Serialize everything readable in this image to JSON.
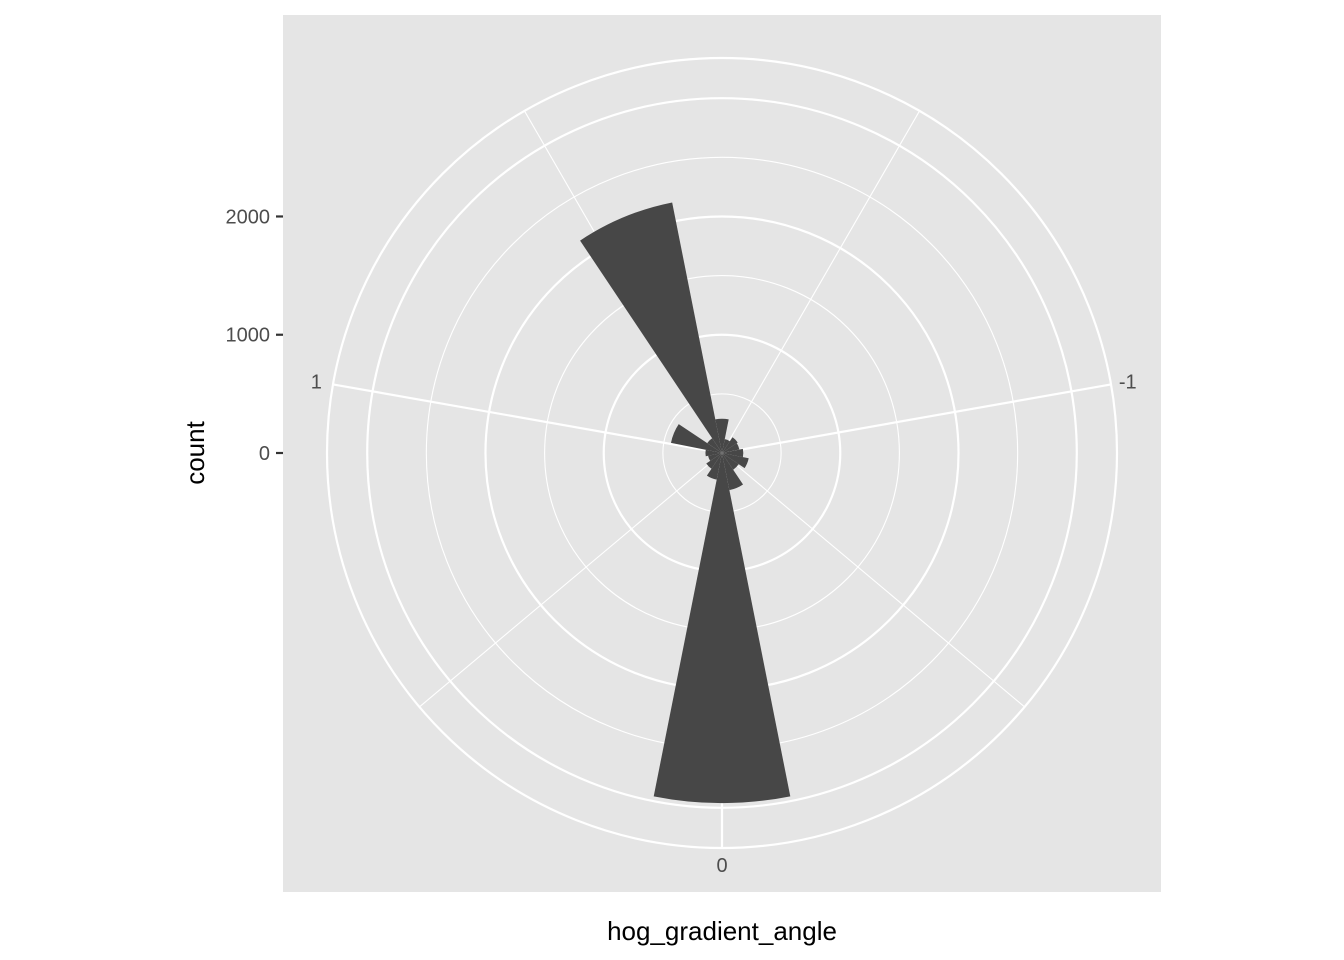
{
  "chart_data": {
    "type": "bar",
    "coord": "polar",
    "title": "",
    "xlabel": "hog_gradient_angle",
    "ylabel": "count",
    "theta_ticks": [
      {
        "value": -1,
        "label": "-1"
      },
      {
        "value": 0,
        "label": "0"
      },
      {
        "value": 1,
        "label": "1"
      }
    ],
    "y_ticks": [
      {
        "value": 0,
        "label": "0"
      },
      {
        "value": 1000,
        "label": "1000"
      },
      {
        "value": 2000,
        "label": "2000"
      }
    ],
    "x_range": [
      -1.8,
      1.8
    ],
    "y_max": 3340,
    "bin_width": 0.225,
    "bins": [
      {
        "x": -1.575,
        "count": 120
      },
      {
        "x": -1.35,
        "count": 160
      },
      {
        "x": -1.125,
        "count": 150
      },
      {
        "x": -0.9,
        "count": 180
      },
      {
        "x": -0.675,
        "count": 230
      },
      {
        "x": -0.45,
        "count": 170
      },
      {
        "x": -0.225,
        "count": 320
      },
      {
        "x": 0.0,
        "count": 2960
      },
      {
        "x": 0.225,
        "count": 230
      },
      {
        "x": 0.45,
        "count": 160
      },
      {
        "x": 0.675,
        "count": 120
      },
      {
        "x": 0.9,
        "count": 140
      },
      {
        "x": 1.125,
        "count": 440
      },
      {
        "x": 1.35,
        "count": 150
      },
      {
        "x": 1.575,
        "count": 2160
      },
      {
        "x": 1.8,
        "count": 290
      }
    ],
    "colors": {
      "panel": "#e5e5e5",
      "grid": "#ffffff",
      "bar": "#474747"
    },
    "grid": true
  }
}
